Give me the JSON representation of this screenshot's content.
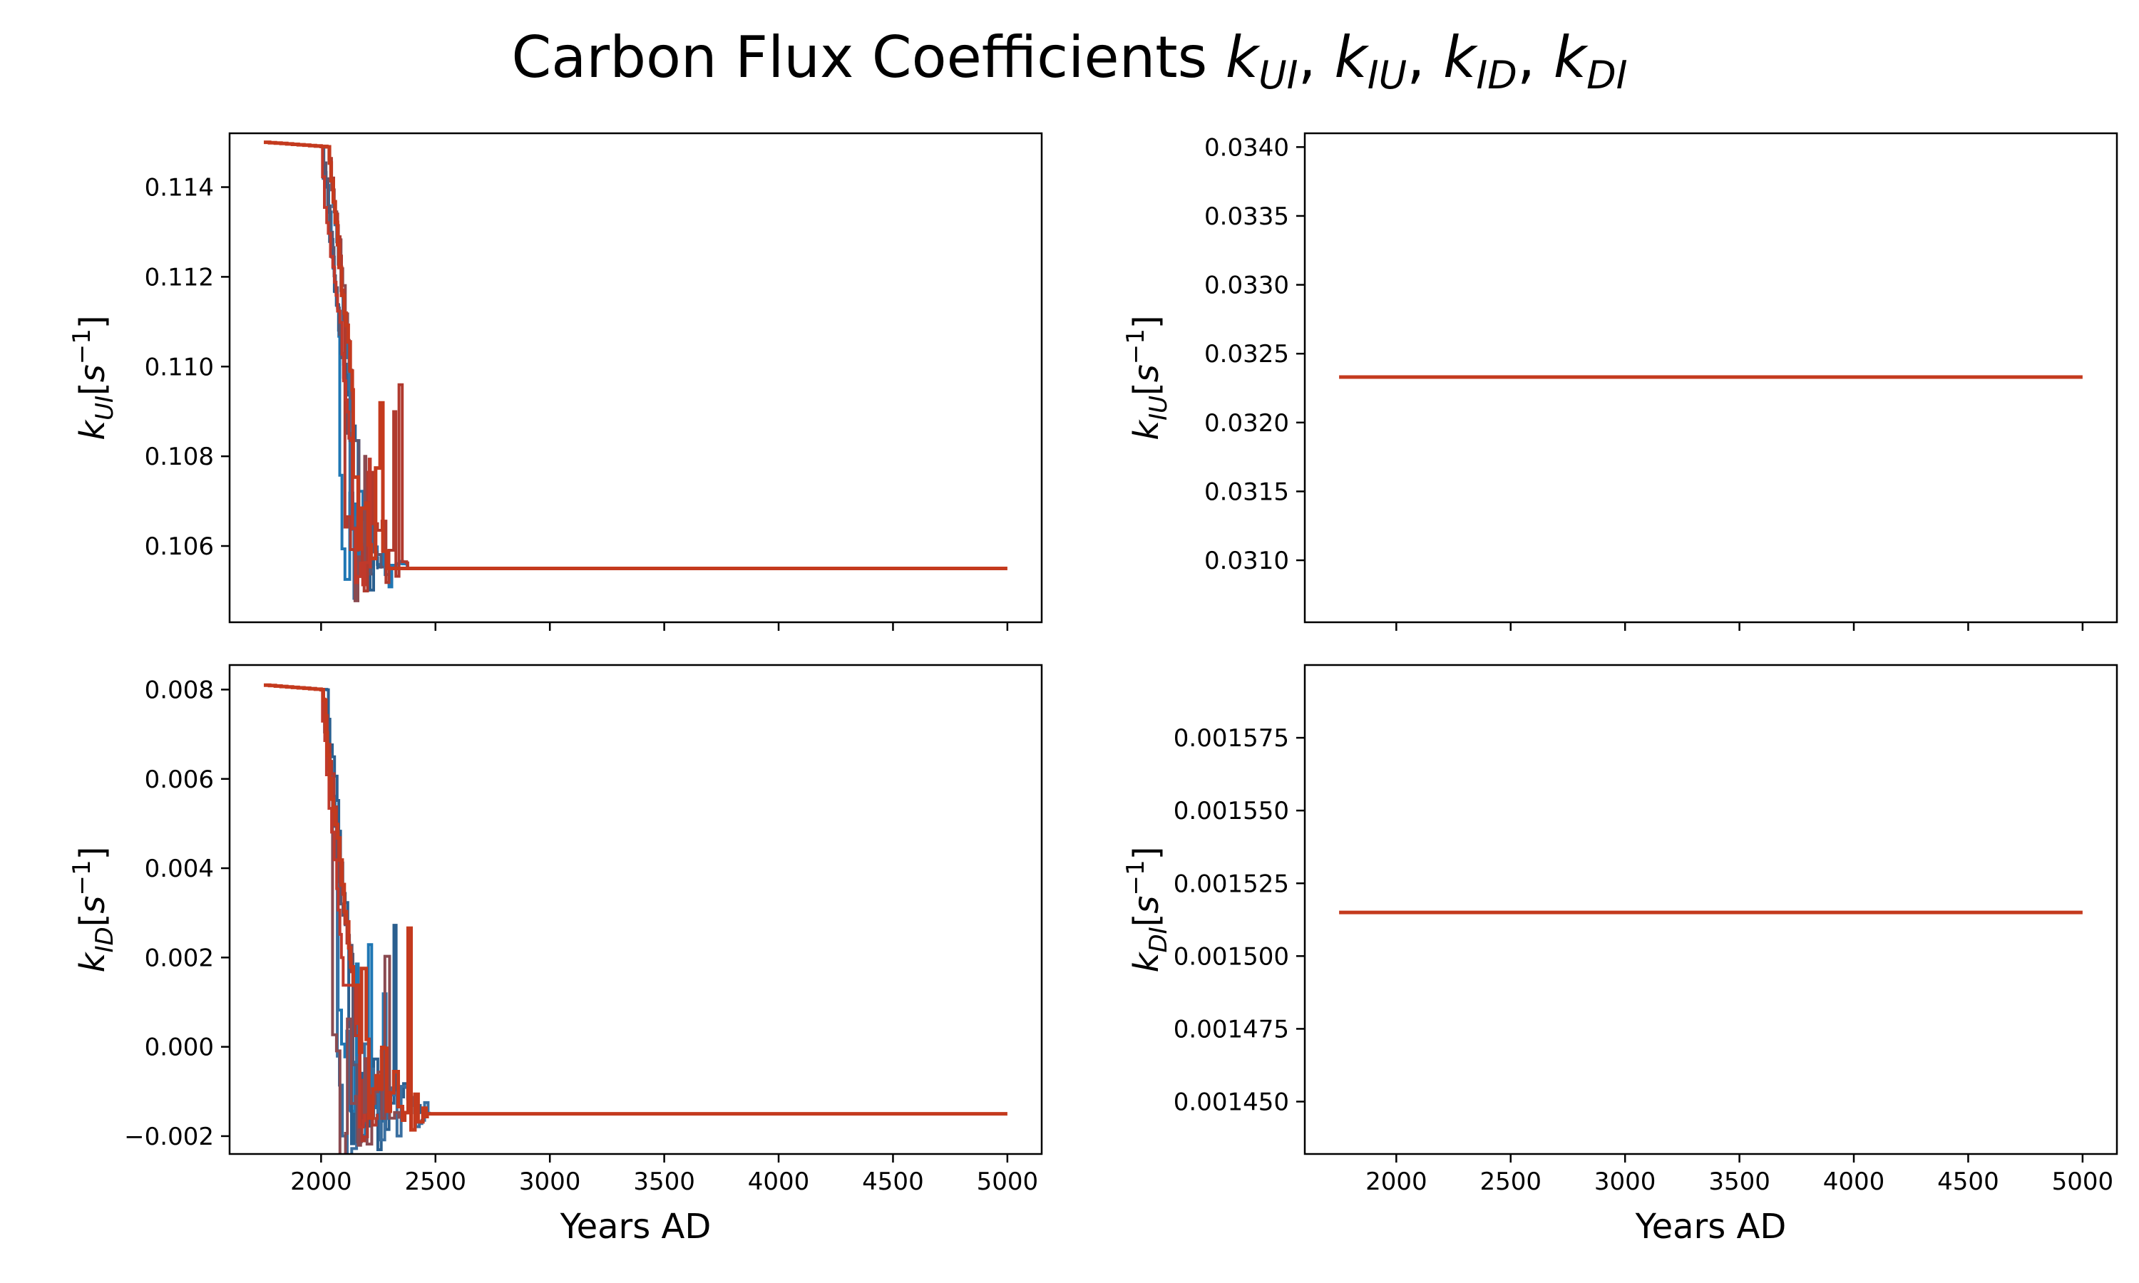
{
  "title": {
    "prefix": "Carbon Flux Coefficients ",
    "parts": [
      {
        "base": "k",
        "sub": "UI"
      },
      {
        "base": "k",
        "sub": "IU"
      },
      {
        "base": "k",
        "sub": "ID"
      },
      {
        "base": "k",
        "sub": "DI"
      }
    ],
    "separator": ", "
  },
  "colors": {
    "series": [
      "#1f77b4",
      "#2a5f8f",
      "#3a6fa0",
      "#5b5670",
      "#8a4a50",
      "#b03a2e",
      "#c0392b",
      "#d64a1d"
    ],
    "final": "#c43a1e"
  },
  "chart_data": [
    {
      "type": "line",
      "panel": "top-left",
      "ylabel": {
        "base": "k",
        "sub": "UI",
        "unit_open": "[",
        "unit_base": "s",
        "unit_sup": "−1",
        "unit_close": "]"
      },
      "xlabel": "",
      "xlim": [
        1600,
        5150
      ],
      "ylim": [
        0.1043,
        0.1152
      ],
      "xticks": [
        "2000",
        "2500",
        "3000",
        "3500",
        "4000",
        "4500",
        "5000"
      ],
      "yticks": [
        "0.106",
        "0.108",
        "0.110",
        "0.112",
        "0.114"
      ],
      "ytick_values": [
        0.106,
        0.108,
        0.11,
        0.112,
        0.114
      ],
      "start_value": 0.115,
      "end_value": 0.1055,
      "x_start": 1750,
      "x_end": 5000,
      "series_count": 8,
      "variable": true
    },
    {
      "type": "line",
      "panel": "top-right",
      "ylabel": {
        "base": "k",
        "sub": "IU",
        "unit_open": "[",
        "unit_base": "s",
        "unit_sup": "−1",
        "unit_close": "]"
      },
      "xlabel": "",
      "xlim": [
        1600,
        5150
      ],
      "ylim": [
        0.03055,
        0.0341
      ],
      "xticks": [
        "2000",
        "2500",
        "3000",
        "3500",
        "4000",
        "4500",
        "5000"
      ],
      "yticks": [
        "0.0310",
        "0.0315",
        "0.0320",
        "0.0325",
        "0.0330",
        "0.0335",
        "0.0340"
      ],
      "ytick_values": [
        0.031,
        0.0315,
        0.032,
        0.0325,
        0.033,
        0.0335,
        0.034
      ],
      "constant_value": 0.03233,
      "x_start": 1750,
      "x_end": 5000,
      "variable": false
    },
    {
      "type": "line",
      "panel": "bottom-left",
      "ylabel": {
        "base": "k",
        "sub": "ID",
        "unit_open": "[",
        "unit_base": "s",
        "unit_sup": "−1",
        "unit_close": "]"
      },
      "xlabel": "Years AD",
      "xlim": [
        1600,
        5150
      ],
      "ylim": [
        -0.0024,
        0.00855
      ],
      "xticks": [
        "2000",
        "2500",
        "3000",
        "3500",
        "4000",
        "4500",
        "5000"
      ],
      "yticks": [
        "−0.002",
        "0.000",
        "0.002",
        "0.004",
        "0.006",
        "0.008"
      ],
      "ytick_values": [
        -0.002,
        0.0,
        0.002,
        0.004,
        0.006,
        0.008
      ],
      "start_value": 0.0081,
      "end_value": -0.0015,
      "x_start": 1750,
      "x_end": 5000,
      "series_count": 8,
      "variable": true
    },
    {
      "type": "line",
      "panel": "bottom-right",
      "ylabel": {
        "base": "k",
        "sub": "DI",
        "unit_open": "[",
        "unit_base": "s",
        "unit_sup": "−1",
        "unit_close": "]"
      },
      "xlabel": "Years AD",
      "xlim": [
        1600,
        5150
      ],
      "ylim": [
        0.001432,
        0.0016
      ],
      "xticks": [
        "2000",
        "2500",
        "3000",
        "3500",
        "4000",
        "4500",
        "5000"
      ],
      "yticks": [
        "0.001450",
        "0.001475",
        "0.001500",
        "0.001525",
        "0.001550",
        "0.001575"
      ],
      "ytick_values": [
        0.00145,
        0.001475,
        0.0015,
        0.001525,
        0.00155,
        0.001575
      ],
      "constant_value": 0.001515,
      "x_start": 1750,
      "x_end": 5000,
      "variable": false
    }
  ]
}
